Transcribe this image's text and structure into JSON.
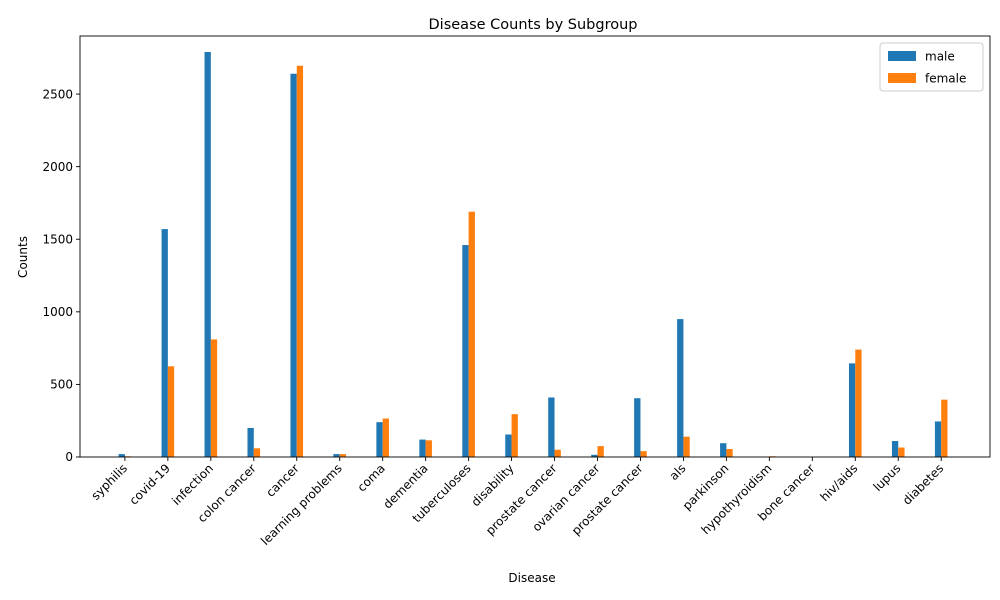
{
  "chart_data": {
    "type": "bar",
    "title": "Disease Counts by Subgroup",
    "xlabel": "Disease",
    "ylabel": "Counts",
    "ylim": [
      0,
      2900
    ],
    "yticks": [
      0,
      500,
      1000,
      1500,
      2000,
      2500
    ],
    "categories": [
      "syphilis",
      "covid-19",
      "infection",
      "colon cancer",
      "cancer",
      "learning problems",
      "coma",
      "dementia",
      "tuberculoses",
      "disability",
      "prostate cancer",
      "ovarian cancer",
      "prostate cancer",
      "als",
      "parkinson",
      "hypothyroidism",
      "bone cancer",
      "hiv/aids",
      "lupus",
      "diabetes"
    ],
    "series": [
      {
        "name": "male",
        "color": "#1f77b4",
        "values": [
          20,
          1570,
          2790,
          200,
          2640,
          20,
          240,
          120,
          1460,
          155,
          410,
          15,
          405,
          950,
          95,
          0,
          0,
          645,
          110,
          245
        ]
      },
      {
        "name": "female",
        "color": "#ff7f0e",
        "values": [
          5,
          625,
          810,
          60,
          2695,
          20,
          265,
          115,
          1690,
          295,
          50,
          75,
          40,
          140,
          55,
          5,
          0,
          740,
          65,
          395
        ]
      }
    ],
    "legend_position": "top-right",
    "grid": false
  }
}
